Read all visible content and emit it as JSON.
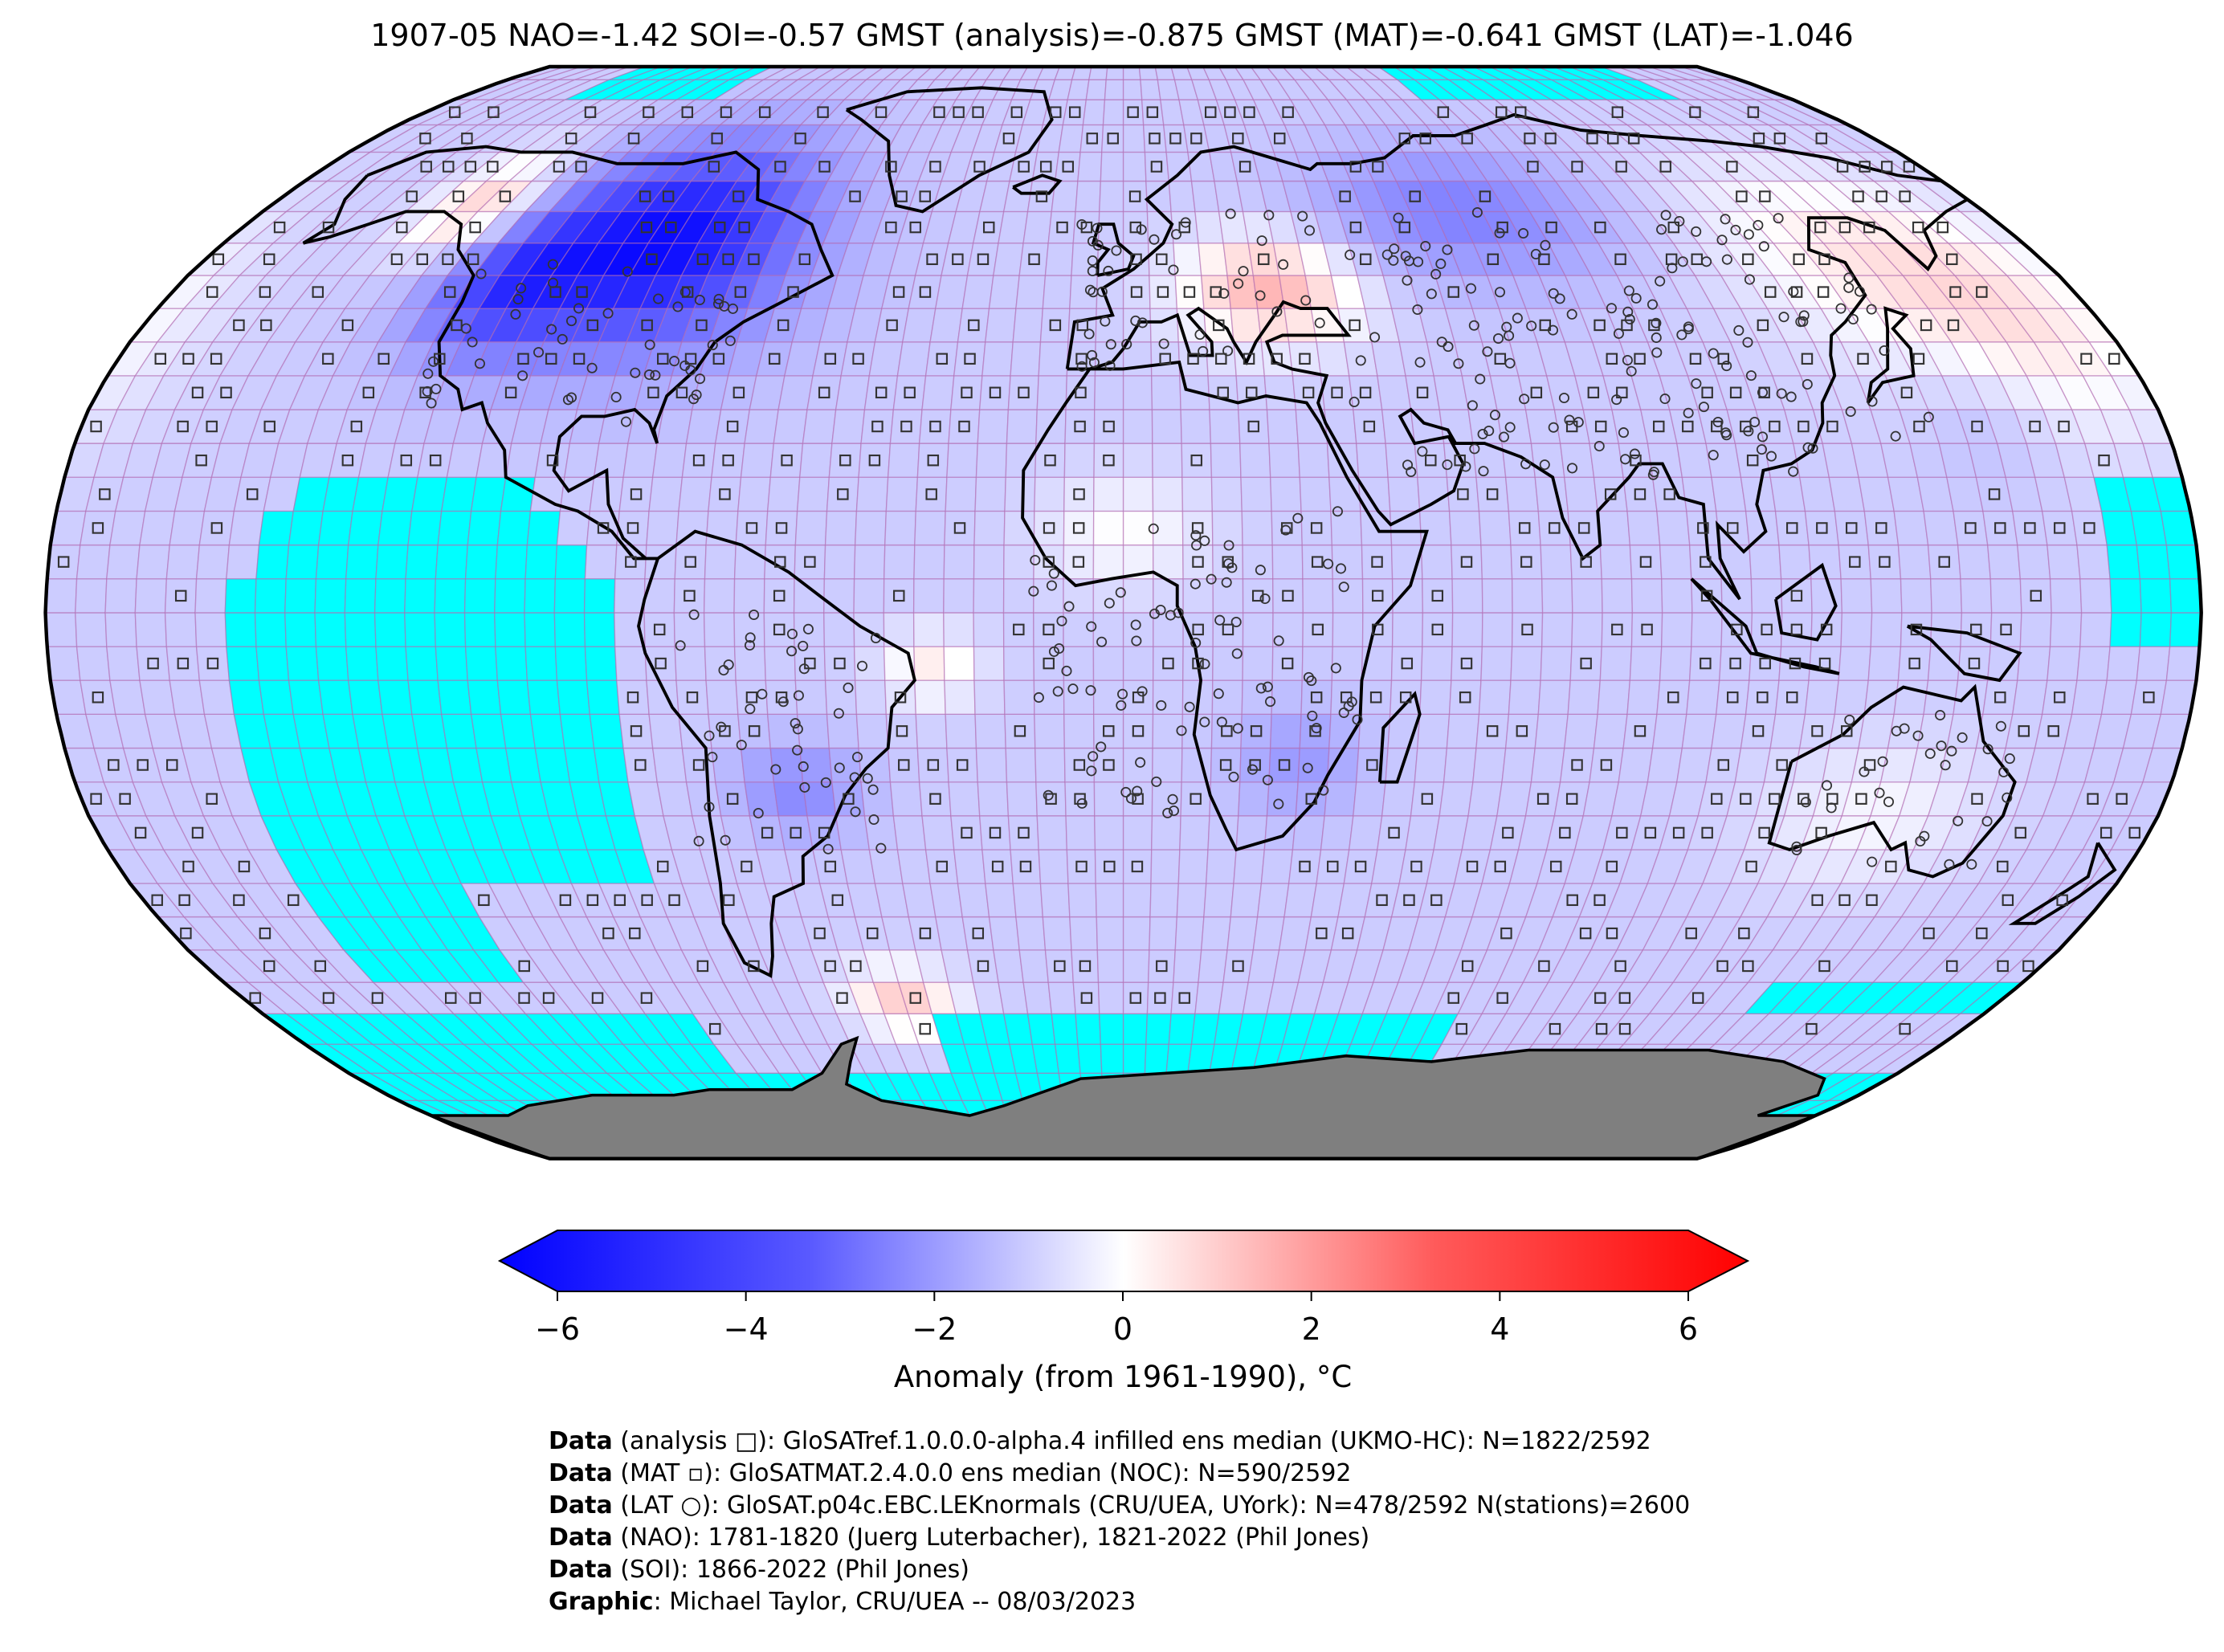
{
  "title": "1907-05 NAO=-1.42 SOI=-0.57 GMST (analysis)=-0.875 GMST (MAT)=-0.641 GMST (LAT)=-1.046",
  "colors": {
    "missing": "#00ffff",
    "antarctica": "#7f7f7f",
    "gridline": "#b06ab0",
    "cold_max": "#0000ff",
    "neutral": "#ffffff",
    "warm_max": "#ff0000"
  },
  "map": {
    "projection": "Robinson",
    "grid_spacing_deg": 5,
    "regions": [
      {
        "name": "north-america-cold",
        "anomaly": -5.2
      },
      {
        "name": "alaska-warm",
        "anomaly": 1.6
      },
      {
        "name": "europe-warm",
        "anomaly": 1.8
      },
      {
        "name": "siberia-cold",
        "anomaly": -2.8
      },
      {
        "name": "north-pacific-warm",
        "anomaly": 0.8
      },
      {
        "name": "south-atlantic-warm",
        "anomaly": 1.5
      }
    ]
  },
  "colorbar": {
    "min": -6,
    "max": 6,
    "ticks": [
      "−6",
      "−4",
      "−2",
      "0",
      "2",
      "4",
      "6"
    ],
    "label": "Anomaly (from 1961-1990), °C"
  },
  "credits": [
    {
      "bold": "Data",
      "text": " (analysis □): GloSATref.1.0.0.0-alpha.4 infilled ens median (UKMO-HC): N=1822/2592"
    },
    {
      "bold": "Data",
      "text": " (MAT ▫): GloSATMAT.2.4.0.0 ens median (NOC): N=590/2592"
    },
    {
      "bold": "Data",
      "text": " (LAT ○): GloSAT.p04c.EBC.LEKnormals (CRU/UEA, UYork): N=478/2592 N(stations)=2600"
    },
    {
      "bold": "Data",
      "text": " (NAO): 1781-1820 (Juerg Luterbacher), 1821-2022 (Phil Jones)"
    },
    {
      "bold": "Data",
      "text": " (SOI): 1866-2022 (Phil Jones)"
    },
    {
      "bold": "Graphic",
      "text": ": Michael Taylor, CRU/UEA -- 08/03/2023"
    }
  ]
}
